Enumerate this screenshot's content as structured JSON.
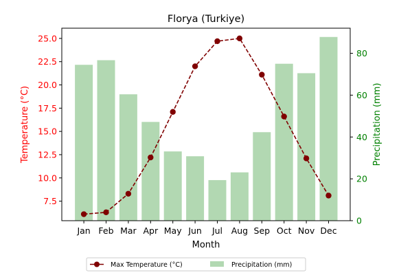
{
  "chart_data": {
    "type": "bar",
    "title": "Florya (Turkiye)",
    "xlabel": "Month",
    "categories": [
      "Jan",
      "Feb",
      "Mar",
      "Apr",
      "May",
      "Jun",
      "Jul",
      "Aug",
      "Sep",
      "Oct",
      "Nov",
      "Dec"
    ],
    "left_axis": {
      "label": "Temperature (°C)",
      "color": "#ff0000",
      "ylim": [
        5.4,
        26.1
      ],
      "ticks": [
        7.5,
        10.0,
        12.5,
        15.0,
        17.5,
        20.0,
        22.5,
        25.0
      ],
      "tick_labels": [
        "7.5",
        "10.0",
        "12.5",
        "15.0",
        "17.5",
        "20.0",
        "22.5",
        "25.0"
      ]
    },
    "right_axis": {
      "label": "Precipitation (mm)",
      "color": "#008000",
      "ylim": [
        0,
        92
      ],
      "ticks": [
        0,
        20,
        40,
        60,
        80
      ],
      "tick_labels": [
        "0",
        "20",
        "40",
        "60",
        "80"
      ]
    },
    "series": [
      {
        "name": "Max Temperature (°C)",
        "type": "line",
        "axis": "left",
        "color": "#800000",
        "style": "dashed-with-circle-markers",
        "values": [
          6.1,
          6.3,
          8.3,
          12.2,
          17.1,
          22.0,
          24.7,
          25.0,
          21.1,
          16.6,
          12.1,
          8.1
        ]
      },
      {
        "name": "Precipitation (mm)",
        "type": "bar",
        "axis": "right",
        "color": "#b2d8b2",
        "values": [
          74.5,
          76.7,
          60.4,
          47.2,
          33.1,
          30.8,
          19.4,
          23.1,
          42.3,
          75.0,
          70.5,
          87.8
        ]
      }
    ],
    "legend": {
      "placement": "bottom-center",
      "columns": 2
    }
  }
}
